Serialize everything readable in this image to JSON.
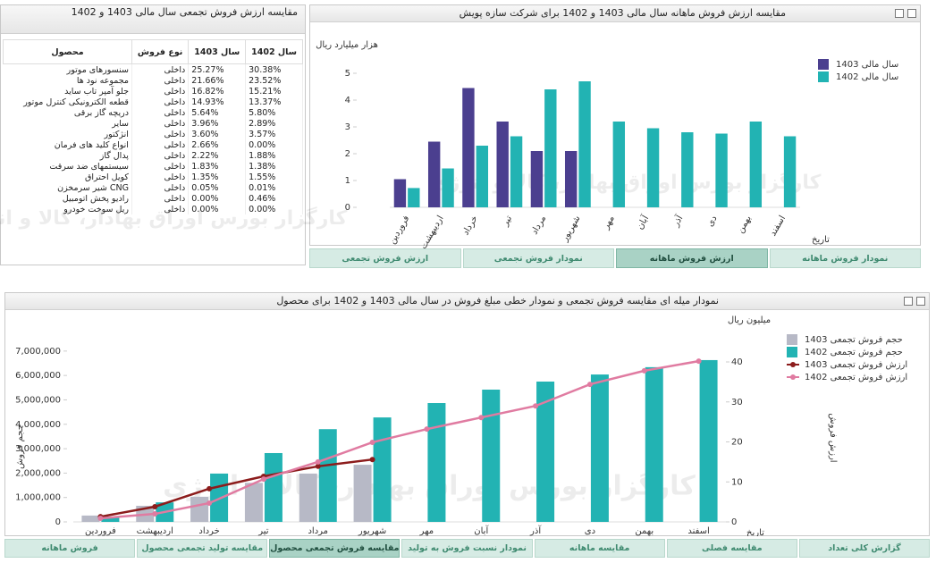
{
  "table_panel": {
    "title": "مقایسه ارزش فروش تجمعی سال مالی 1403 و 1402",
    "columns": [
      "سال 1402",
      "سال 1403",
      "نوع فروش",
      "محصول"
    ],
    "rows": [
      [
        "30.38%",
        "25.27%",
        "داخلی",
        "سنسورهای موتور"
      ],
      [
        "23.52%",
        "21.66%",
        "داخلی",
        "مجموعه نود ها"
      ],
      [
        "15.21%",
        "16.82%",
        "داخلی",
        "جلو آمپر تاب ساید"
      ],
      [
        "13.37%",
        "14.93%",
        "داخلی",
        "قطعه الکترونیکی کنترل موتور"
      ],
      [
        "5.80%",
        "5.64%",
        "داخلی",
        "دریچه گاز برقی"
      ],
      [
        "2.89%",
        "3.96%",
        "داخلی",
        "سایر"
      ],
      [
        "3.57%",
        "3.60%",
        "داخلی",
        "انژکتور"
      ],
      [
        "0.00%",
        "2.66%",
        "داخلی",
        "انواع کلید های فرمان"
      ],
      [
        "1.88%",
        "2.22%",
        "داخلی",
        "پدال گاز"
      ],
      [
        "1.38%",
        "1.83%",
        "داخلی",
        "سیستمهای ضد سرقت"
      ],
      [
        "1.55%",
        "1.35%",
        "داخلی",
        "کویل احتراق"
      ],
      [
        "0.01%",
        "0.05%",
        "داخلی",
        "CNG شیر سرمخزن"
      ],
      [
        "0.46%",
        "0.00%",
        "داخلی",
        "رادیو پخش اتومبیل"
      ],
      [
        "0.00%",
        "0.00%",
        "داخلی",
        "ریل سوخت خودرو"
      ]
    ]
  },
  "watermark": "کارگزار بورس اوراق بهادار، کالا و انرژی",
  "chart_data": [
    {
      "type": "bar",
      "title": "مقایسه ارزش فروش ماهانه سال مالی 1403 و 1402 برای شرکت سازه پویش",
      "y_label": "هزار میلیارد ریال",
      "x_label": "تاریخ",
      "categories": [
        "فروردین",
        "اردیبهشت",
        "خرداد",
        "تیر",
        "مرداد",
        "شهریور",
        "مهر",
        "آبان",
        "آذر",
        "دی",
        "بهمن",
        "اسفند"
      ],
      "series": [
        {
          "name": "سال مالی 1403",
          "color": "#4b3f8f",
          "values": [
            1.05,
            2.45,
            4.45,
            3.2,
            2.1,
            2.1,
            null,
            null,
            null,
            null,
            null,
            null
          ]
        },
        {
          "name": "سال مالی 1402",
          "color": "#22b3b3",
          "values": [
            0.72,
            1.45,
            2.3,
            2.65,
            4.4,
            4.7,
            3.2,
            2.95,
            2.8,
            2.75,
            3.2,
            2.65
          ]
        }
      ],
      "ylim": [
        0,
        5.5
      ],
      "yticks": [
        0,
        1,
        2,
        3,
        4,
        5
      ],
      "grid": false,
      "legend": "top-right"
    },
    {
      "type": "combo",
      "title": "نمودار میله ای مقایسه فروش تجمعی و نمودار خطی مبلغ فروش در سال مالی 1403 و 1402 برای محصول",
      "y_label": "حجم فروش",
      "y2_label": "ارزش فروش",
      "y2_unit": "میلیون ریال",
      "x_label": "تاریخ",
      "categories": [
        "فروردین",
        "اردیبهشت",
        "خرداد",
        "تیر",
        "مرداد",
        "شهریور",
        "مهر",
        "آبان",
        "آذر",
        "دی",
        "بهمن",
        "اسفند"
      ],
      "series": [
        {
          "name": "حجم فروش تجمعی 1403",
          "kind": "bar",
          "color": "#b7b9c6",
          "values": [
            260000,
            660000,
            1030000,
            1600000,
            1980000,
            2340000,
            null,
            null,
            null,
            null,
            null,
            null
          ]
        },
        {
          "name": "حجم فروش تجمعی 1402",
          "kind": "bar",
          "color": "#22b3b3",
          "values": [
            220000,
            800000,
            1980000,
            2820000,
            3800000,
            4280000,
            4870000,
            5420000,
            5750000,
            6040000,
            6340000,
            6630000
          ]
        },
        {
          "name": "ارزش فروش تجمعی 1403",
          "kind": "line",
          "axis": "y2",
          "color": "#8c1c1c",
          "values": [
            1.3,
            3.8,
            8.3,
            11.4,
            13.9,
            15.6,
            null,
            null,
            null,
            null,
            null,
            null
          ]
        },
        {
          "name": "ارزش فروش تجمعی 1402",
          "kind": "line",
          "axis": "y2",
          "color": "#e07ba1",
          "values": [
            0.9,
            2.0,
            4.7,
            10.7,
            15.0,
            19.9,
            23.2,
            26.1,
            29.0,
            34.4,
            37.8,
            40.2
          ]
        }
      ],
      "ylim": [
        0,
        7800000
      ],
      "yticks": [
        0,
        {
          "value": 1000000,
          "label": "1,000,000"
        },
        {
          "value": 2000000,
          "label": "2,000,000"
        },
        {
          "value": 3000000,
          "label": "3,000,000"
        },
        {
          "value": 4000000,
          "label": "4,000,000"
        },
        {
          "value": 5000000,
          "label": "5,000,000"
        },
        {
          "value": 6000000,
          "label": "6,000,000"
        },
        {
          "value": 7000000,
          "label": "7,000,000"
        }
      ],
      "y2lim": [
        0,
        47.6
      ],
      "y2ticks": [
        0,
        10,
        20,
        30,
        40
      ],
      "grid": false,
      "legend": "top-right"
    }
  ],
  "top_tabs": [
    "نمودار فروش ماهانه",
    "ارزش فروش ماهانه",
    "نمودار فروش تجمعی",
    "ارزش فروش تجمعی"
  ],
  "active_top_tab": 1,
  "bottom_tabs": [
    "گزارش کلی تعداد",
    "مقایسه فصلی",
    "مقایسه ماهانه",
    "نمودار نسبت فروش به تولید",
    "مقایسه فروش تجمعی محصول",
    "مقایسه تولید تجمعی محصول",
    "فروش ماهانه"
  ],
  "active_bottom_tab": 4
}
